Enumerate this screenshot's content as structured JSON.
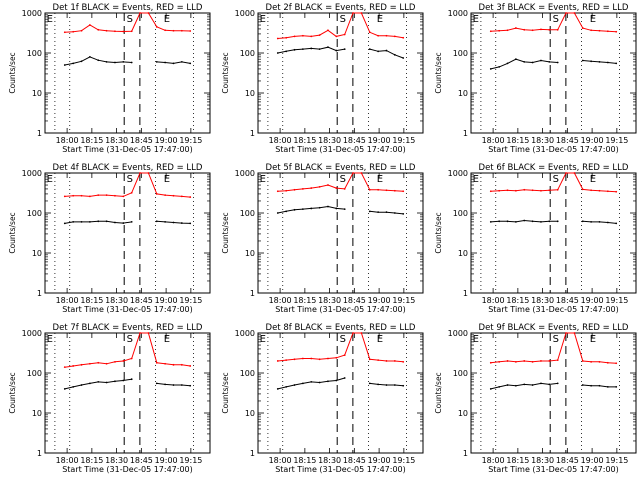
{
  "window": {
    "title": "",
    "background": "#ffffff"
  },
  "chart_data": [
    {
      "type": "line",
      "title": "Det 1f BLACK = Events, RED = LLD",
      "xlabel": "Start Time (31-Dec-05 17:47:00)",
      "ylabel": "Counts/sec",
      "yscale": "log",
      "ylim": [
        1,
        1000
      ],
      "xtick_labels": [
        "18:00",
        "18:15",
        "18:30",
        "18:45",
        "19:00",
        "19:15"
      ],
      "ytick_labels": [
        "1",
        "10",
        "100",
        "1000"
      ],
      "markers": [
        {
          "label": "E",
          "style": "dotted"
        },
        {
          "label": "S",
          "style": "dashed"
        },
        {
          "label": "E",
          "style": "dotted"
        }
      ],
      "grid": false,
      "legend": "none",
      "series": [
        {
          "name": "LLD",
          "color": "#ff0000",
          "values": [
            330,
            340,
            360,
            500,
            380,
            360,
            350,
            345,
            350,
            1000,
            1000,
            450,
            370,
            360,
            360,
            355
          ]
        },
        {
          "name": "Events",
          "color": "#000000",
          "values": [
            50,
            55,
            62,
            80,
            66,
            60,
            58,
            60,
            58,
            null,
            null,
            60,
            58,
            55,
            60,
            55
          ]
        }
      ]
    },
    {
      "type": "line",
      "title": "Det 2f BLACK = Events, RED = LLD",
      "xlabel": "Start Time (31-Dec-05 17:47:00)",
      "ylabel": "Counts/sec",
      "yscale": "log",
      "ylim": [
        1,
        1000
      ],
      "xtick_labels": [
        "18:00",
        "18:15",
        "18:30",
        "18:45",
        "19:00",
        "19:15"
      ],
      "ytick_labels": [
        "1",
        "10",
        "100",
        "1000"
      ],
      "markers": [
        {
          "label": "E",
          "style": "dotted"
        },
        {
          "label": "S",
          "style": "dashed"
        },
        {
          "label": "E",
          "style": "dotted"
        }
      ],
      "grid": false,
      "legend": "none",
      "series": [
        {
          "name": "LLD",
          "color": "#ff0000",
          "values": [
            230,
            240,
            260,
            270,
            260,
            280,
            370,
            260,
            290,
            1000,
            1000,
            330,
            270,
            270,
            260,
            240
          ]
        },
        {
          "name": "Events",
          "color": "#000000",
          "values": [
            100,
            110,
            120,
            125,
            130,
            125,
            140,
            115,
            125,
            null,
            null,
            125,
            110,
            115,
            90,
            75
          ]
        }
      ]
    },
    {
      "type": "line",
      "title": "Det 3f BLACK = Events, RED = LLD",
      "xlabel": "Start Time (31-Dec-05 17:47:00)",
      "ylabel": "Counts/sec",
      "yscale": "log",
      "ylim": [
        1,
        1000
      ],
      "xtick_labels": [
        "18:00",
        "18:15",
        "18:30",
        "18:45",
        "19:00",
        "19:15"
      ],
      "ytick_labels": [
        "1",
        "10",
        "100",
        "1000"
      ],
      "markers": [
        {
          "label": "E",
          "style": "dotted"
        },
        {
          "label": "S",
          "style": "dashed"
        },
        {
          "label": "E",
          "style": "dotted"
        }
      ],
      "grid": false,
      "legend": "none",
      "series": [
        {
          "name": "LLD",
          "color": "#ff0000",
          "values": [
            350,
            360,
            370,
            420,
            380,
            370,
            390,
            380,
            380,
            1000,
            1000,
            420,
            370,
            360,
            350,
            340
          ]
        },
        {
          "name": "Events",
          "color": "#000000",
          "values": [
            40,
            45,
            55,
            70,
            60,
            58,
            65,
            60,
            58,
            null,
            null,
            65,
            62,
            60,
            58,
            55
          ]
        }
      ]
    },
    {
      "type": "line",
      "title": "Det 4f BLACK = Events, RED = LLD",
      "xlabel": "Start Time (31-Dec-05 17:47:00)",
      "ylabel": "Counts/sec",
      "yscale": "log",
      "ylim": [
        1,
        1000
      ],
      "xtick_labels": [
        "18:00",
        "18:15",
        "18:30",
        "18:45",
        "19:00",
        "19:15"
      ],
      "ytick_labels": [
        "1",
        "10",
        "100",
        "1000"
      ],
      "markers": [
        {
          "label": "E",
          "style": "dotted"
        },
        {
          "label": "S",
          "style": "dashed"
        },
        {
          "label": "E",
          "style": "dotted"
        }
      ],
      "grid": false,
      "legend": "none",
      "series": [
        {
          "name": "LLD",
          "color": "#ff0000",
          "values": [
            260,
            270,
            270,
            260,
            280,
            280,
            270,
            260,
            320,
            1000,
            1000,
            300,
            280,
            270,
            260,
            250
          ]
        },
        {
          "name": "Events",
          "color": "#000000",
          "values": [
            55,
            60,
            60,
            60,
            62,
            62,
            58,
            56,
            60,
            null,
            null,
            62,
            60,
            58,
            56,
            55
          ]
        }
      ]
    },
    {
      "type": "line",
      "title": "Det 5f BLACK = Events, RED = LLD",
      "xlabel": "Start Time (31-Dec-05 17:47:00)",
      "ylabel": "Counts/sec",
      "yscale": "log",
      "ylim": [
        1,
        1000
      ],
      "xtick_labels": [
        "18:00",
        "18:15",
        "18:30",
        "18:45",
        "19:00",
        "19:15"
      ],
      "ytick_labels": [
        "1",
        "10",
        "100",
        "1000"
      ],
      "markers": [
        {
          "label": "E",
          "style": "dotted"
        },
        {
          "label": "S",
          "style": "dashed"
        },
        {
          "label": "E",
          "style": "dotted"
        }
      ],
      "grid": false,
      "legend": "none",
      "series": [
        {
          "name": "LLD",
          "color": "#ff0000",
          "values": [
            350,
            360,
            380,
            400,
            420,
            450,
            500,
            420,
            400,
            1000,
            1000,
            380,
            380,
            370,
            360,
            350
          ]
        },
        {
          "name": "Events",
          "color": "#000000",
          "values": [
            100,
            110,
            120,
            125,
            130,
            135,
            145,
            130,
            125,
            null,
            null,
            110,
            105,
            105,
            100,
            95
          ]
        }
      ]
    },
    {
      "type": "line",
      "title": "Det 6f BLACK = Events, RED = LLD",
      "xlabel": "Start Time (31-Dec-05 17:47:00)",
      "ylabel": "Counts/sec",
      "yscale": "log",
      "ylim": [
        1,
        1000
      ],
      "xtick_labels": [
        "18:00",
        "18:15",
        "18:30",
        "18:45",
        "19:00",
        "19:15"
      ],
      "ytick_labels": [
        "1",
        "10",
        "100",
        "1000"
      ],
      "markers": [
        {
          "label": "E",
          "style": "dotted"
        },
        {
          "label": "S",
          "style": "dashed"
        },
        {
          "label": "E",
          "style": "dotted"
        }
      ],
      "grid": false,
      "legend": "none",
      "series": [
        {
          "name": "LLD",
          "color": "#ff0000",
          "values": [
            350,
            360,
            370,
            360,
            380,
            370,
            360,
            370,
            380,
            1000,
            1000,
            390,
            370,
            360,
            350,
            340
          ]
        },
        {
          "name": "Events",
          "color": "#000000",
          "values": [
            60,
            62,
            62,
            60,
            65,
            62,
            60,
            62,
            62,
            null,
            null,
            62,
            60,
            60,
            58,
            55
          ]
        }
      ]
    },
    {
      "type": "line",
      "title": "Det 7f BLACK = Events, RED = LLD",
      "xlabel": "Start Time (31-Dec-05 17:47:00)",
      "ylabel": "Counts/sec",
      "yscale": "log",
      "ylim": [
        1,
        1000
      ],
      "xtick_labels": [
        "18:00",
        "18:15",
        "18:30",
        "18:45",
        "19:00",
        "19:15"
      ],
      "ytick_labels": [
        "1",
        "10",
        "100",
        "1000"
      ],
      "markers": [
        {
          "label": "E",
          "style": "dotted"
        },
        {
          "label": "S",
          "style": "dashed"
        },
        {
          "label": "E",
          "style": "dotted"
        }
      ],
      "grid": false,
      "legend": "none",
      "series": [
        {
          "name": "LLD",
          "color": "#ff0000",
          "values": [
            140,
            150,
            160,
            170,
            180,
            170,
            190,
            200,
            230,
            1000,
            1000,
            180,
            170,
            160,
            160,
            150
          ]
        },
        {
          "name": "Events",
          "color": "#000000",
          "values": [
            40,
            45,
            50,
            55,
            60,
            58,
            62,
            65,
            70,
            null,
            null,
            55,
            52,
            50,
            50,
            48
          ]
        }
      ]
    },
    {
      "type": "line",
      "title": "Det 8f BLACK = Events, RED = LLD",
      "xlabel": "Start Time (31-Dec-05 17:47:00)",
      "ylabel": "Counts/sec",
      "yscale": "log",
      "ylim": [
        1,
        1000
      ],
      "xtick_labels": [
        "18:00",
        "18:15",
        "18:30",
        "18:45",
        "19:00",
        "19:15"
      ],
      "ytick_labels": [
        "1",
        "10",
        "100",
        "1000"
      ],
      "markers": [
        {
          "label": "E",
          "style": "dotted"
        },
        {
          "label": "S",
          "style": "dashed"
        },
        {
          "label": "E",
          "style": "dotted"
        }
      ],
      "grid": false,
      "legend": "none",
      "series": [
        {
          "name": "LLD",
          "color": "#ff0000",
          "values": [
            200,
            210,
            220,
            230,
            230,
            220,
            230,
            240,
            280,
            1000,
            1000,
            220,
            210,
            200,
            200,
            190
          ]
        },
        {
          "name": "Events",
          "color": "#000000",
          "values": [
            40,
            45,
            50,
            55,
            60,
            58,
            62,
            65,
            75,
            null,
            null,
            55,
            52,
            50,
            50,
            48
          ]
        }
      ]
    },
    {
      "type": "line",
      "title": "Det 9f BLACK = Events, RED = LLD",
      "xlabel": "Start Time (31-Dec-05 17:47:00)",
      "ylabel": "Counts/sec",
      "yscale": "log",
      "ylim": [
        1,
        1000
      ],
      "xtick_labels": [
        "18:00",
        "18:15",
        "18:30",
        "18:45",
        "19:00",
        "19:15"
      ],
      "ytick_labels": [
        "1",
        "10",
        "100",
        "1000"
      ],
      "markers": [
        {
          "label": "E",
          "style": "dotted"
        },
        {
          "label": "S",
          "style": "dashed"
        },
        {
          "label": "E",
          "style": "dotted"
        }
      ],
      "grid": false,
      "legend": "none",
      "series": [
        {
          "name": "LLD",
          "color": "#ff0000",
          "values": [
            180,
            190,
            200,
            190,
            200,
            190,
            200,
            200,
            210,
            1000,
            1000,
            200,
            190,
            190,
            180,
            175
          ]
        },
        {
          "name": "Events",
          "color": "#000000",
          "values": [
            40,
            45,
            50,
            48,
            52,
            50,
            55,
            52,
            55,
            null,
            null,
            50,
            48,
            48,
            45,
            45
          ]
        }
      ]
    }
  ]
}
